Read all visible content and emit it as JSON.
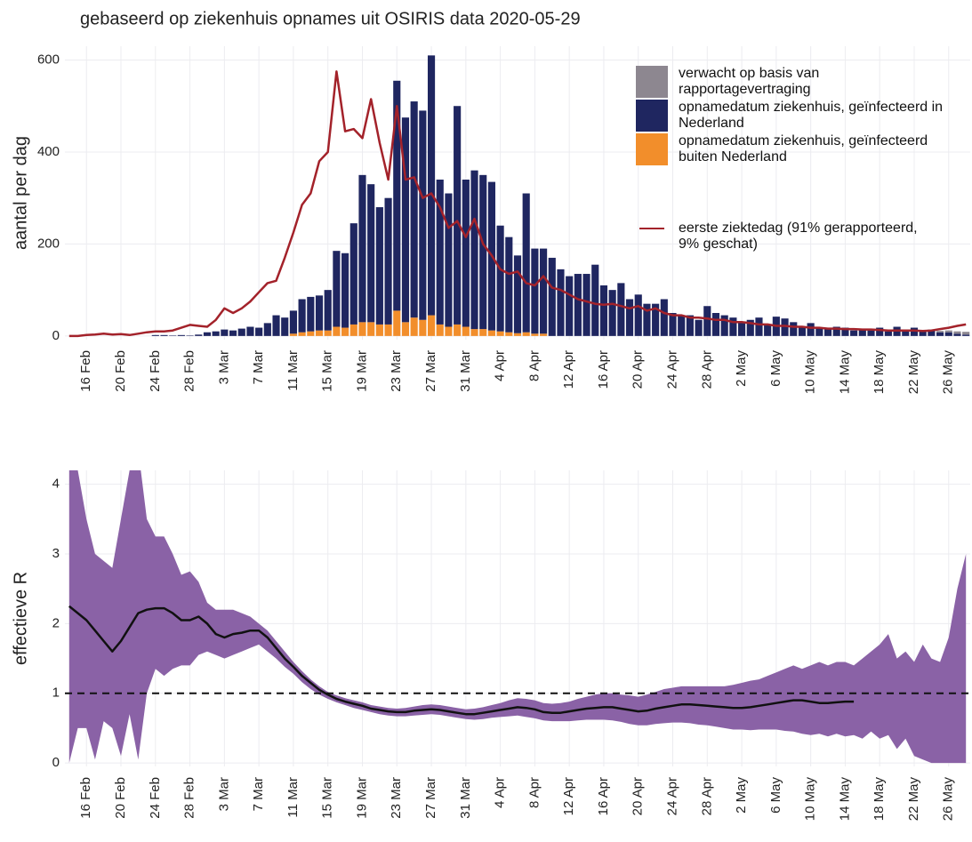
{
  "chart_data": [
    {
      "type": "bar",
      "stacked": true,
      "title": "gebaseerd op ziekenhuis opnames uit OSIRIS data 2020-05-29",
      "ylabel": "aantal per dag",
      "grid": true,
      "legend": "upper right",
      "categories": [
        null,
        null,
        "16 Feb",
        null,
        null,
        null,
        "20 Feb",
        null,
        null,
        null,
        "24 Feb",
        null,
        null,
        null,
        "28 Feb",
        null,
        null,
        null,
        "3 Mar",
        null,
        null,
        null,
        "7 Mar",
        null,
        null,
        null,
        "11 Mar",
        null,
        null,
        null,
        "15 Mar",
        null,
        null,
        null,
        "19 Mar",
        null,
        null,
        null,
        "23 Mar",
        null,
        null,
        null,
        "27 Mar",
        null,
        null,
        null,
        "31 Mar",
        null,
        null,
        null,
        "4 Apr",
        null,
        null,
        null,
        "8 Apr",
        null,
        null,
        null,
        "12 Apr",
        null,
        null,
        null,
        "16 Apr",
        null,
        null,
        null,
        "20 Apr",
        null,
        null,
        null,
        "24 Apr",
        null,
        null,
        null,
        "28 Apr",
        null,
        null,
        null,
        "2 May",
        null,
        null,
        null,
        "6 May",
        null,
        null,
        null,
        "10 May",
        null,
        null,
        null,
        "14 May",
        null,
        null,
        null,
        "18 May",
        null,
        null,
        null,
        "22 May",
        null,
        null,
        null,
        "26 May",
        null,
        null
      ],
      "ylim": [
        -8,
        630
      ],
      "yticks": [
        0,
        200,
        400,
        600
      ],
      "series": [
        {
          "name": "verwacht op basis van rapportagevertraging",
          "type": "bar",
          "color": "#8d8790",
          "values": [
            0,
            0,
            0,
            0,
            0,
            0,
            0,
            0,
            0,
            0,
            0,
            0,
            0,
            0,
            0,
            0,
            0,
            0,
            0,
            0,
            0,
            0,
            0,
            0,
            0,
            0,
            0,
            0,
            0,
            0,
            0,
            0,
            0,
            0,
            0,
            0,
            0,
            0,
            0,
            0,
            0,
            0,
            0,
            0,
            0,
            0,
            0,
            0,
            0,
            0,
            0,
            0,
            0,
            0,
            0,
            0,
            0,
            0,
            0,
            0,
            0,
            0,
            0,
            0,
            0,
            0,
            0,
            0,
            0,
            0,
            0,
            0,
            0,
            0,
            0,
            0,
            0,
            0,
            0,
            0,
            0,
            0,
            0,
            0,
            0,
            0,
            0,
            0,
            0,
            0,
            0,
            0,
            0,
            0,
            0,
            0,
            0,
            0,
            0,
            0,
            2,
            3,
            4,
            5,
            6
          ]
        },
        {
          "name": "opnamedatum ziekenhuis, geïnfecteerd in Nederland",
          "type": "bar",
          "color": "#1f2660",
          "values": [
            0,
            0,
            0,
            0,
            0,
            0,
            0,
            0,
            0,
            0,
            2,
            2,
            1,
            2,
            1,
            3,
            8,
            10,
            14,
            12,
            16,
            20,
            18,
            28,
            45,
            40,
            50,
            72,
            75,
            76,
            88,
            165,
            162,
            220,
            320,
            300,
            255,
            275,
            500,
            445,
            470,
            455,
            565,
            315,
            290,
            475,
            320,
            345,
            335,
            323,
            230,
            207,
            169,
            302,
            185,
            185,
            170,
            145,
            130,
            135,
            135,
            155,
            110,
            100,
            115,
            80,
            90,
            70,
            70,
            80,
            50,
            45,
            45,
            35,
            65,
            50,
            45,
            40,
            30,
            35,
            40,
            25,
            42,
            38,
            30,
            20,
            28,
            18,
            15,
            20,
            18,
            12,
            15,
            12,
            18,
            10,
            20,
            14,
            18,
            10,
            12,
            8,
            8,
            5,
            3
          ]
        },
        {
          "name": "opnamedatum ziekenhuis, geïnfecteerd buiten Nederland",
          "type": "bar",
          "color": "#f28e2b",
          "values": [
            0,
            0,
            0,
            0,
            0,
            0,
            0,
            0,
            0,
            0,
            0,
            0,
            0,
            0,
            0,
            0,
            0,
            0,
            0,
            0,
            0,
            0,
            0,
            0,
            0,
            0,
            5,
            8,
            10,
            12,
            12,
            20,
            18,
            25,
            30,
            30,
            25,
            25,
            55,
            30,
            40,
            35,
            45,
            25,
            20,
            25,
            20,
            15,
            15,
            12,
            10,
            8,
            6,
            8,
            5,
            5,
            0,
            0,
            0,
            0,
            0,
            0,
            0,
            0,
            0,
            0,
            0,
            0,
            0,
            0,
            0,
            0,
            0,
            0,
            0,
            0,
            0,
            0,
            0,
            0,
            0,
            0,
            0,
            0,
            0,
            0,
            0,
            0,
            0,
            0,
            0,
            0,
            0,
            0,
            0,
            0,
            0,
            0,
            0,
            0,
            0,
            0,
            0,
            0,
            0
          ]
        },
        {
          "name": "eerste ziektedag (91% gerapporteerd, 9% geschat)",
          "type": "line",
          "color": "#a3222a",
          "values": [
            0,
            0,
            2,
            3,
            5,
            3,
            4,
            2,
            5,
            8,
            10,
            10,
            12,
            18,
            24,
            22,
            20,
            35,
            60,
            50,
            60,
            75,
            95,
            115,
            120,
            170,
            225,
            285,
            310,
            380,
            400,
            575,
            445,
            450,
            430,
            515,
            420,
            340,
            500,
            340,
            345,
            300,
            310,
            280,
            235,
            250,
            215,
            255,
            200,
            175,
            145,
            135,
            140,
            115,
            110,
            130,
            105,
            100,
            90,
            80,
            75,
            70,
            68,
            70,
            65,
            60,
            65,
            55,
            60,
            50,
            45,
            45,
            40,
            40,
            38,
            35,
            35,
            30,
            30,
            28,
            25,
            25,
            22,
            22,
            20,
            20,
            18,
            18,
            16,
            16,
            15,
            15,
            14,
            14,
            13,
            12,
            12,
            12,
            12,
            11,
            12,
            15,
            18,
            22,
            25
          ]
        }
      ]
    },
    {
      "type": "line",
      "ylabel": "effectieve R",
      "grid": true,
      "categories": [
        null,
        null,
        "16 Feb",
        null,
        null,
        null,
        "20 Feb",
        null,
        null,
        null,
        "24 Feb",
        null,
        null,
        null,
        "28 Feb",
        null,
        null,
        null,
        "3 Mar",
        null,
        null,
        null,
        "7 Mar",
        null,
        null,
        null,
        "11 Mar",
        null,
        null,
        null,
        "15 Mar",
        null,
        null,
        null,
        "19 Mar",
        null,
        null,
        null,
        "23 Mar",
        null,
        null,
        null,
        "27 Mar",
        null,
        null,
        null,
        "31 Mar",
        null,
        null,
        null,
        "4 Apr",
        null,
        null,
        null,
        "8 Apr",
        null,
        null,
        null,
        "12 Apr",
        null,
        null,
        null,
        "16 Apr",
        null,
        null,
        null,
        "20 Apr",
        null,
        null,
        null,
        "24 Apr",
        null,
        null,
        null,
        "28 Apr",
        null,
        null,
        null,
        "2 May",
        null,
        null,
        null,
        "6 May",
        null,
        null,
        null,
        "10 May",
        null,
        null,
        null,
        "14 May",
        null,
        null,
        null,
        "18 May",
        null,
        null,
        null,
        "22 May",
        null,
        null,
        null,
        "26 May",
        null,
        null
      ],
      "ylim": [
        -0.05,
        4.2
      ],
      "yticks": [
        0,
        1,
        2,
        3,
        4
      ],
      "reference_line": 1,
      "color": "#111111",
      "band_color": "#8a62a6",
      "values": [
        2.25,
        2.15,
        2.05,
        1.9,
        1.75,
        1.6,
        1.75,
        1.95,
        2.15,
        2.2,
        2.22,
        2.22,
        2.15,
        2.05,
        2.05,
        2.1,
        2.0,
        1.85,
        1.8,
        1.85,
        1.87,
        1.9,
        1.9,
        1.8,
        1.65,
        1.5,
        1.38,
        1.25,
        1.15,
        1.05,
        0.98,
        0.92,
        0.88,
        0.85,
        0.82,
        0.78,
        0.76,
        0.74,
        0.73,
        0.73,
        0.75,
        0.76,
        0.77,
        0.76,
        0.74,
        0.72,
        0.7,
        0.7,
        0.72,
        0.74,
        0.76,
        0.78,
        0.8,
        0.79,
        0.77,
        0.73,
        0.72,
        0.72,
        0.74,
        0.76,
        0.78,
        0.79,
        0.8,
        0.8,
        0.78,
        0.76,
        0.74,
        0.75,
        0.78,
        0.8,
        0.82,
        0.84,
        0.84,
        0.83,
        0.82,
        0.81,
        0.8,
        0.79,
        0.79,
        0.8,
        0.82,
        0.84,
        0.86,
        0.88,
        0.9,
        0.9,
        0.88,
        0.86,
        0.86,
        0.87,
        0.88,
        0.88,
        null,
        null,
        null,
        null,
        null,
        null,
        null,
        null,
        null,
        null,
        null,
        null,
        null
      ],
      "upper": [
        4.2,
        4.2,
        3.5,
        3,
        2.9,
        2.8,
        3.5,
        4.2,
        4.5,
        3.5,
        3.25,
        3.25,
        3,
        2.7,
        2.75,
        2.6,
        2.3,
        2.2,
        2.2,
        2.2,
        2.15,
        2.1,
        2,
        1.9,
        1.75,
        1.6,
        1.45,
        1.32,
        1.2,
        1.1,
        1.02,
        0.97,
        0.93,
        0.9,
        0.87,
        0.83,
        0.81,
        0.79,
        0.78,
        0.79,
        0.81,
        0.83,
        0.84,
        0.83,
        0.81,
        0.79,
        0.77,
        0.78,
        0.8,
        0.83,
        0.86,
        0.9,
        0.93,
        0.92,
        0.9,
        0.86,
        0.85,
        0.86,
        0.88,
        0.92,
        0.95,
        0.98,
        1,
        1,
        0.98,
        0.97,
        0.95,
        0.98,
        1.02,
        1.06,
        1.08,
        1.1,
        1.1,
        1.1,
        1.1,
        1.1,
        1.1,
        1.12,
        1.15,
        1.18,
        1.2,
        1.25,
        1.3,
        1.35,
        1.4,
        1.35,
        1.4,
        1.45,
        1.4,
        1.45,
        1.45,
        1.4,
        1.5,
        1.6,
        1.7,
        1.85,
        1.5,
        1.6,
        1.45,
        1.7,
        1.5,
        1.45,
        1.8,
        2.5,
        3
      ],
      "lower": [
        0,
        0.5,
        0.5,
        0.05,
        0.6,
        0.5,
        0.1,
        0.7,
        0.05,
        1,
        1.35,
        1.25,
        1.35,
        1.4,
        1.4,
        1.55,
        1.6,
        1.55,
        1.5,
        1.55,
        1.6,
        1.65,
        1.7,
        1.6,
        1.5,
        1.38,
        1.28,
        1.16,
        1.06,
        0.98,
        0.92,
        0.87,
        0.83,
        0.79,
        0.76,
        0.73,
        0.7,
        0.68,
        0.67,
        0.67,
        0.68,
        0.69,
        0.7,
        0.69,
        0.67,
        0.65,
        0.63,
        0.62,
        0.63,
        0.65,
        0.66,
        0.67,
        0.68,
        0.66,
        0.64,
        0.61,
        0.6,
        0.6,
        0.6,
        0.61,
        0.62,
        0.62,
        0.62,
        0.61,
        0.59,
        0.56,
        0.54,
        0.54,
        0.56,
        0.57,
        0.58,
        0.58,
        0.57,
        0.55,
        0.54,
        0.52,
        0.5,
        0.48,
        0.48,
        0.47,
        0.48,
        0.48,
        0.48,
        0.46,
        0.45,
        0.42,
        0.4,
        0.42,
        0.38,
        0.42,
        0.38,
        0.4,
        0.35,
        0.45,
        0.35,
        0.4,
        0.2,
        0.35,
        0.1,
        0.05,
        0,
        0,
        0,
        0,
        0
      ]
    }
  ]
}
